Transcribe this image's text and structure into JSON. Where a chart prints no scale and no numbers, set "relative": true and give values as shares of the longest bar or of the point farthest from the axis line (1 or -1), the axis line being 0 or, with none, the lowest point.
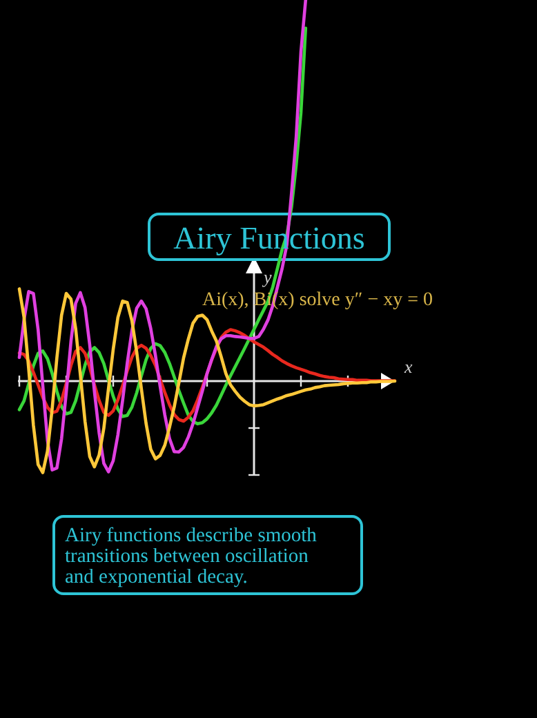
{
  "chart_data": {
    "type": "line",
    "title": "Airy Functions",
    "subtitle": "Ai(x), Bi(x) solve y″ − xy = 0",
    "xlabel": "x",
    "ylabel": "y",
    "relative": true,
    "categories": [
      null,
      null,
      null,
      null,
      null,
      null,
      null,
      null,
      null,
      null,
      null,
      null,
      null,
      null,
      null,
      null,
      null,
      null,
      null,
      null,
      null,
      null,
      null,
      null,
      null,
      null,
      null,
      null,
      null,
      null,
      null,
      null,
      null,
      null,
      null,
      null,
      null,
      null,
      null,
      null,
      null,
      null,
      null,
      null,
      null,
      null,
      null,
      null,
      null,
      null,
      null,
      null,
      null,
      null,
      null,
      null,
      null,
      null,
      null,
      null,
      null,
      null,
      null,
      null,
      null,
      null,
      null,
      null,
      null,
      null,
      null,
      null,
      null,
      null,
      null,
      null,
      null,
      null,
      null,
      null,
      null
    ],
    "annotations": [
      "Airy functions describe smooth transitions between oscillation and exponential decay."
    ],
    "series": [
      {
        "color": "#3ad63a",
        "values": [
          -0.075,
          -0.052,
          -0.007,
          0.04,
          0.073,
          0.079,
          0.059,
          0.02,
          -0.027,
          -0.067,
          -0.086,
          -0.082,
          -0.052,
          -0.005,
          0.042,
          0.077,
          0.088,
          0.075,
          0.046,
          0.002,
          -0.04,
          -0.074,
          -0.093,
          -0.09,
          -0.068,
          -0.031,
          0.014,
          0.056,
          0.086,
          0.098,
          0.093,
          0.075,
          0.046,
          0.011,
          -0.025,
          -0.058,
          -0.089,
          -0.106,
          -0.112,
          -0.109,
          -0.099,
          -0.083,
          -0.063,
          -0.037,
          -0.011,
          0.014,
          0.038,
          0.062,
          0.086,
          0.111,
          0.136,
          0.161,
          0.185,
          0.21,
          0.247,
          0.296,
          0.346,
          0.383,
          0.457,
          0.568,
          0.704,
          0.926,
          null,
          null,
          null,
          null,
          null,
          null,
          null,
          null,
          null,
          null,
          null,
          null,
          null,
          null,
          null,
          null,
          null,
          null,
          null
        ]
      },
      {
        "color": "#e8281e",
        "values": [
          0.074,
          0.07,
          0.053,
          0.023,
          -0.01,
          -0.043,
          -0.069,
          -0.083,
          -0.079,
          -0.051,
          -0.006,
          0.041,
          0.078,
          0.088,
          0.073,
          0.036,
          -0.01,
          -0.051,
          -0.082,
          -0.09,
          -0.078,
          -0.049,
          -0.012,
          0.027,
          0.063,
          0.086,
          0.094,
          0.086,
          0.067,
          0.041,
          0.005,
          -0.03,
          -0.062,
          -0.088,
          -0.101,
          -0.105,
          -0.095,
          -0.078,
          -0.049,
          -0.016,
          0.02,
          0.056,
          0.086,
          0.114,
          0.128,
          0.135,
          0.132,
          0.127,
          0.12,
          0.111,
          0.103,
          0.096,
          0.089,
          0.08,
          0.07,
          0.062,
          0.053,
          0.046,
          0.04,
          0.035,
          0.031,
          0.027,
          0.022,
          0.019,
          0.015,
          0.012,
          0.01,
          0.009,
          0.006,
          0.005,
          0.004,
          0.004,
          0.002,
          0.002,
          0.002,
          0.001,
          0.001,
          0.001,
          0.001,
          0.001,
          0.001
        ]
      },
      {
        "color": "#e040e0",
        "values": [
          0.062,
          0.161,
          0.235,
          0.23,
          0.135,
          -0.012,
          -0.156,
          -0.233,
          -0.228,
          -0.151,
          -0.03,
          0.104,
          0.204,
          0.232,
          0.193,
          0.095,
          -0.027,
          -0.136,
          -0.216,
          -0.238,
          -0.209,
          -0.141,
          -0.051,
          0.048,
          0.133,
          0.191,
          0.21,
          0.19,
          0.138,
          0.067,
          -0.014,
          -0.089,
          -0.151,
          -0.185,
          -0.186,
          -0.174,
          -0.147,
          -0.112,
          -0.069,
          -0.026,
          0.02,
          0.057,
          0.091,
          0.111,
          0.119,
          0.119,
          0.117,
          0.116,
          0.114,
          0.112,
          0.112,
          0.117,
          0.136,
          0.161,
          0.198,
          0.247,
          0.296,
          0.358,
          0.494,
          0.642,
          0.864,
          1,
          null,
          null,
          null,
          null,
          null,
          null,
          null,
          null,
          null,
          null,
          null,
          null,
          null,
          null,
          null,
          null,
          null,
          null,
          null
        ]
      },
      {
        "color": "#ffc83a",
        "values": [
          0.242,
          0.168,
          0.031,
          -0.116,
          -0.219,
          -0.24,
          -0.184,
          -0.072,
          0.061,
          0.173,
          0.23,
          0.215,
          0.138,
          0.017,
          -0.106,
          -0.198,
          -0.225,
          -0.194,
          -0.124,
          -0.019,
          0.083,
          0.167,
          0.21,
          0.206,
          0.158,
          0.077,
          -0.02,
          -0.111,
          -0.179,
          -0.204,
          -0.195,
          -0.168,
          -0.121,
          -0.068,
          -0.004,
          0.061,
          0.11,
          0.152,
          0.17,
          0.173,
          0.161,
          0.131,
          0.105,
          0.064,
          0.02,
          -0.01,
          -0.027,
          -0.042,
          -0.053,
          -0.062,
          -0.065,
          -0.064,
          -0.062,
          -0.057,
          -0.052,
          -0.047,
          -0.043,
          -0.038,
          -0.035,
          -0.031,
          -0.027,
          -0.023,
          -0.021,
          -0.017,
          -0.015,
          -0.012,
          -0.011,
          -0.01,
          -0.009,
          -0.007,
          -0.006,
          -0.005,
          -0.005,
          -0.004,
          -0.004,
          -0.002,
          -0.002,
          -0.001,
          -0.001,
          -0.001,
          0
        ]
      }
    ]
  }
}
